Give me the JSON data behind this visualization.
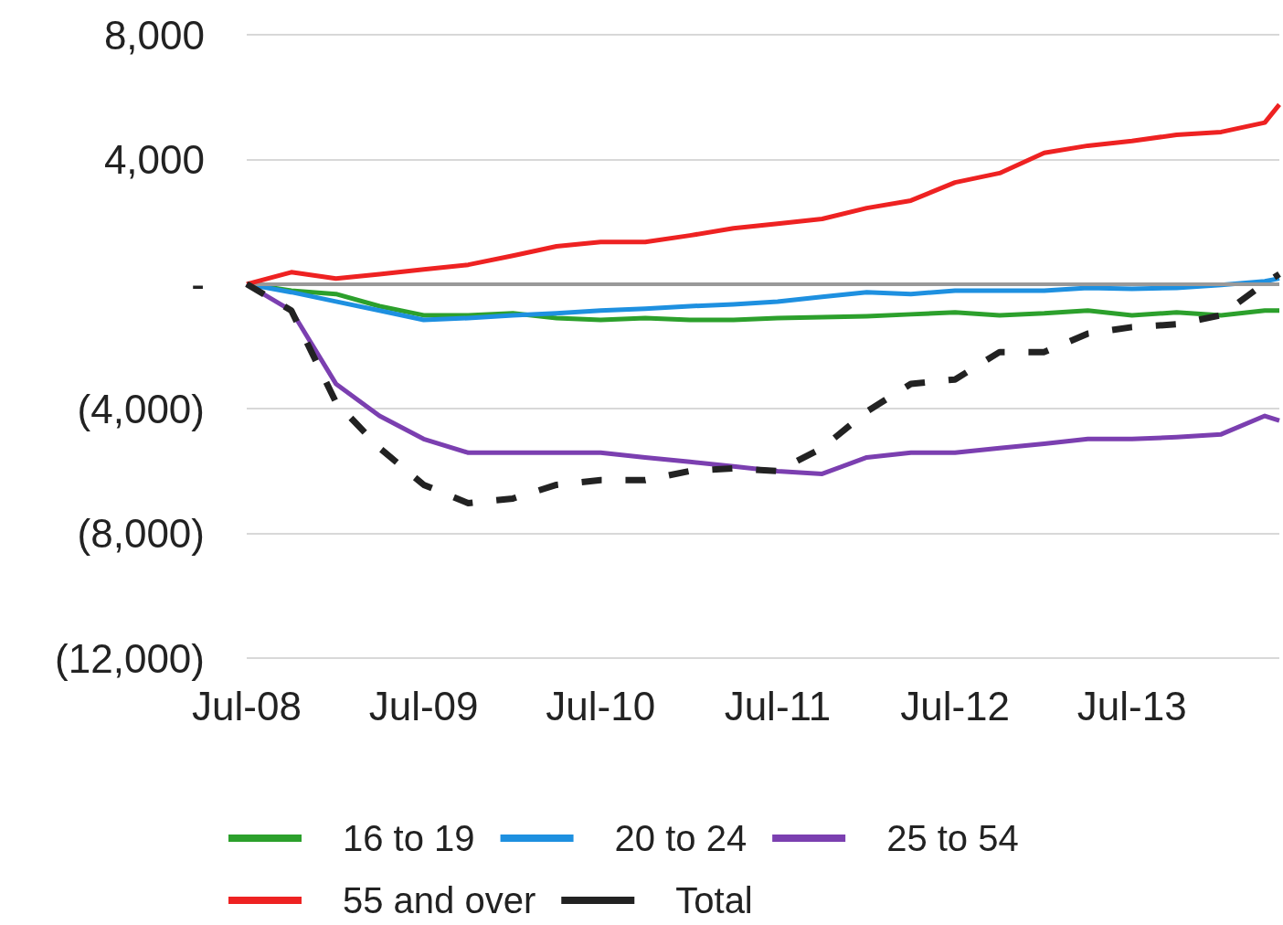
{
  "chart_data": {
    "type": "line",
    "x": [
      "2008-07",
      "2008-10",
      "2009-01",
      "2009-04",
      "2009-07",
      "2009-10",
      "2010-01",
      "2010-04",
      "2010-07",
      "2010-10",
      "2011-01",
      "2011-04",
      "2011-07",
      "2011-10",
      "2012-01",
      "2012-04",
      "2012-07",
      "2012-10",
      "2013-01",
      "2013-04",
      "2013-07",
      "2013-10",
      "2014-01",
      "2014-04",
      "2014-05"
    ],
    "series": [
      {
        "name": "16 to 19",
        "color": "#2ca02c",
        "values": [
          0,
          -210,
          -320,
          -710,
          -1000,
          -1000,
          -940,
          -1090,
          -1150,
          -1090,
          -1150,
          -1150,
          -1090,
          -1060,
          -1030,
          -970,
          -910,
          -1000,
          -940,
          -850,
          -1000,
          -910,
          -1000,
          -850,
          -850
        ]
      },
      {
        "name": "20 to 24",
        "color": "#1e90e0",
        "values": [
          0,
          -260,
          -560,
          -850,
          -1150,
          -1090,
          -1000,
          -940,
          -850,
          -790,
          -710,
          -650,
          -560,
          -410,
          -260,
          -320,
          -210,
          -210,
          -210,
          -120,
          -150,
          -120,
          -30,
          90,
          180
        ]
      },
      {
        "name": "25 to 54",
        "color": "#7b3fb0",
        "values": [
          0,
          -850,
          -3200,
          -4230,
          -4970,
          -5410,
          -5410,
          -5410,
          -5410,
          -5560,
          -5700,
          -5850,
          -6000,
          -6090,
          -5560,
          -5410,
          -5410,
          -5260,
          -5120,
          -4970,
          -4970,
          -4910,
          -4820,
          -4230,
          -4380
        ]
      },
      {
        "name": "55 and over",
        "color": "#ee2222",
        "values": [
          0,
          380,
          180,
          320,
          470,
          620,
          910,
          1210,
          1350,
          1350,
          1560,
          1790,
          1940,
          2090,
          2440,
          2680,
          3260,
          3560,
          4210,
          4440,
          4590,
          4790,
          4880,
          5180,
          5760
        ]
      },
      {
        "name": "Total",
        "color": "#222222",
        "line_style": "dashed",
        "values": [
          0,
          -850,
          -3790,
          -5260,
          -6440,
          -7030,
          -6880,
          -6440,
          -6290,
          -6290,
          -6000,
          -5910,
          -6000,
          -5260,
          -4090,
          -3200,
          -3060,
          -2180,
          -2180,
          -1590,
          -1380,
          -1290,
          -1000,
          30,
          320
        ]
      }
    ],
    "xlim": [
      "2008-07",
      "2014-05"
    ],
    "xticks": [
      {
        "value": "2008-07",
        "label": "Jul-08"
      },
      {
        "value": "2009-07",
        "label": "Jul-09"
      },
      {
        "value": "2010-07",
        "label": "Jul-10"
      },
      {
        "value": "2011-07",
        "label": "Jul-11"
      },
      {
        "value": "2012-07",
        "label": "Jul-12"
      },
      {
        "value": "2013-07",
        "label": "Jul-13"
      }
    ],
    "ylim": [
      -12000,
      8000
    ],
    "yticks": [
      {
        "value": -12000,
        "label": "(12,000)"
      },
      {
        "value": -8000,
        "label": "(8,000)"
      },
      {
        "value": -4000,
        "label": "(4,000)"
      },
      {
        "value": 0,
        "label": "-"
      },
      {
        "value": 4000,
        "label": "4,000"
      },
      {
        "value": 8000,
        "label": "8,000"
      }
    ],
    "ref_lines": [
      {
        "axis": "y",
        "value": 0,
        "color": "#999999"
      }
    ],
    "grid": "y",
    "legend": "bottom",
    "marker": "none"
  }
}
